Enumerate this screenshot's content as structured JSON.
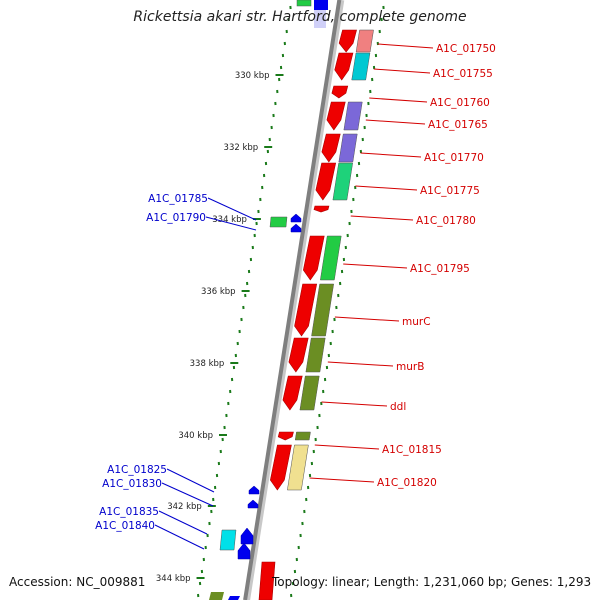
{
  "title": "Rickettsia akari str. Hartford, complete genome",
  "accession_text": "Accession: NC_009881",
  "topology_text": "Topology: linear; Length: 1,231,060 bp; Genes: 1,293",
  "colors": {
    "backbone": "#7f7f7f",
    "tick": "#1a7a1a",
    "forward_label": "#d40000",
    "reverse_label": "#0000cc",
    "gene_arrow": "#ee0000",
    "reverse_arrow": "#0000ee"
  },
  "scale": {
    "ticks": [
      {
        "label": "330 kbp"
      },
      {
        "label": "332 kbp"
      },
      {
        "label": "334 kbp"
      },
      {
        "label": "336 kbp"
      },
      {
        "label": "338 kbp"
      },
      {
        "label": "340 kbp"
      },
      {
        "label": "342 kbp"
      },
      {
        "label": "344 kbp"
      }
    ]
  },
  "forward_genes": [
    {
      "label": "A1C_01750",
      "cog_color": "#f08080"
    },
    {
      "label": "A1C_01755",
      "cog_color": "#00c8d2"
    },
    {
      "label": "A1C_01760",
      "cog_color": "#ffffff"
    },
    {
      "label": "A1C_01765",
      "cog_color": "#7b68d8"
    },
    {
      "label": "A1C_01770",
      "cog_color": "#7b68d8"
    },
    {
      "label": "A1C_01775",
      "cog_color": "#1ed27a"
    },
    {
      "label": "A1C_01780",
      "cog_color": "#ffffff"
    },
    {
      "label": "A1C_01795",
      "cog_color": "#22cc44"
    },
    {
      "label": "murC",
      "cog_color": "#6b8e23"
    },
    {
      "label": "murB",
      "cog_color": "#6b8e23"
    },
    {
      "label": "ddl",
      "cog_color": "#6b8e23"
    },
    {
      "label": "A1C_01815",
      "cog_color": "#6b8e23"
    },
    {
      "label": "A1C_01820",
      "cog_color": "#f0e090"
    }
  ],
  "reverse_genes": [
    {
      "label": "A1C_01785",
      "cog_color": "#22cc44"
    },
    {
      "label": "A1C_01790",
      "cog_color": "#22cc44"
    },
    {
      "label": "A1C_01825",
      "cog_color": "#ffffff"
    },
    {
      "label": "A1C_01830",
      "cog_color": "#ffffff"
    },
    {
      "label": "A1C_01835",
      "cog_color": "#00e0e8"
    },
    {
      "label": "A1C_01840",
      "cog_color": "#00e0e8"
    }
  ]
}
